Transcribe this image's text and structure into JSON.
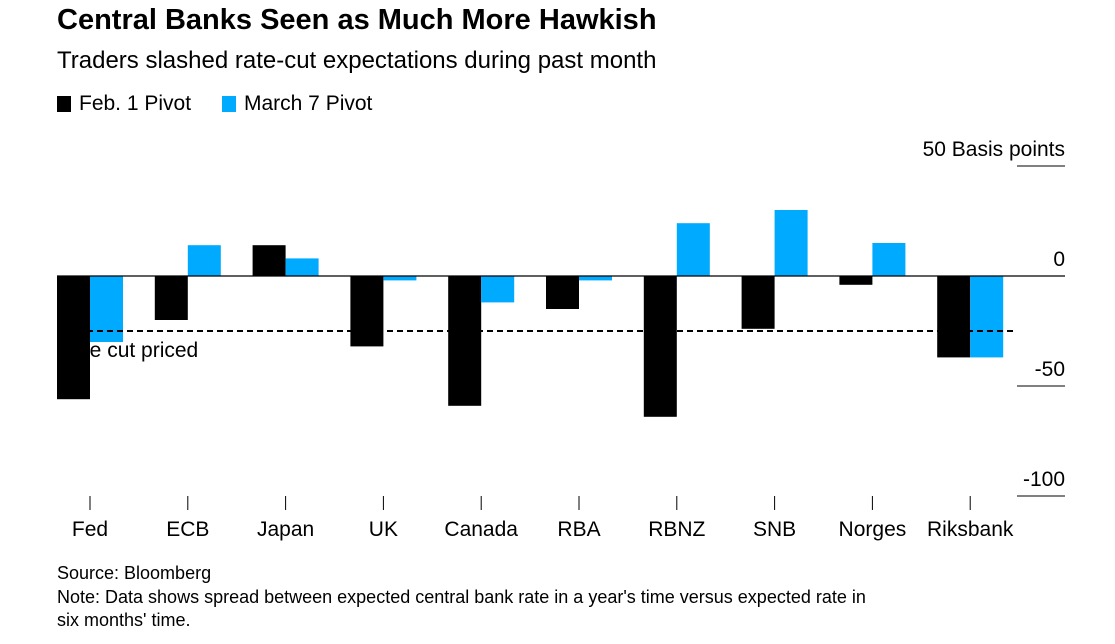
{
  "title": "Central Banks Seen as Much More Hawkish",
  "subtitle": "Traders slashed rate-cut expectations during past month",
  "legend": [
    {
      "label": "Feb. 1 Pivot",
      "color": "#000000"
    },
    {
      "label": "March 7 Pivot",
      "color": "#00aaff"
    }
  ],
  "source": "Source: Bloomberg",
  "note": "Note: Data shows spread between expected central bank rate in a year's time versus expected rate in",
  "note2": "six months' time.",
  "chart_data": {
    "type": "bar",
    "title": "Central Banks Seen as Much More Hawkish",
    "ylabel": "Basis points",
    "ylim": [
      -100,
      50
    ],
    "yticks": [
      {
        "v": 50,
        "label": "50 Basis points"
      },
      {
        "v": 0,
        "label": "0"
      },
      {
        "v": -50,
        "label": "-50"
      },
      {
        "v": -100,
        "label": "-100"
      }
    ],
    "categories": [
      "Fed",
      "ECB",
      "Japan",
      "UK",
      "Canada",
      "RBA",
      "RBNZ",
      "SNB",
      "Norges",
      "Riksbank"
    ],
    "series": [
      {
        "name": "Feb. 1 Pivot",
        "color": "#000000",
        "values": [
          -56,
          -20,
          14,
          -32,
          -59,
          -15,
          -64,
          -24,
          -4,
          -37
        ]
      },
      {
        "name": "March 7 Pivot",
        "color": "#00aaff",
        "values": [
          -30,
          14,
          8,
          -2,
          -12,
          -2,
          24,
          30,
          15,
          -37
        ]
      }
    ],
    "annotation": {
      "label": "Rate cut priced",
      "value": -25
    }
  }
}
